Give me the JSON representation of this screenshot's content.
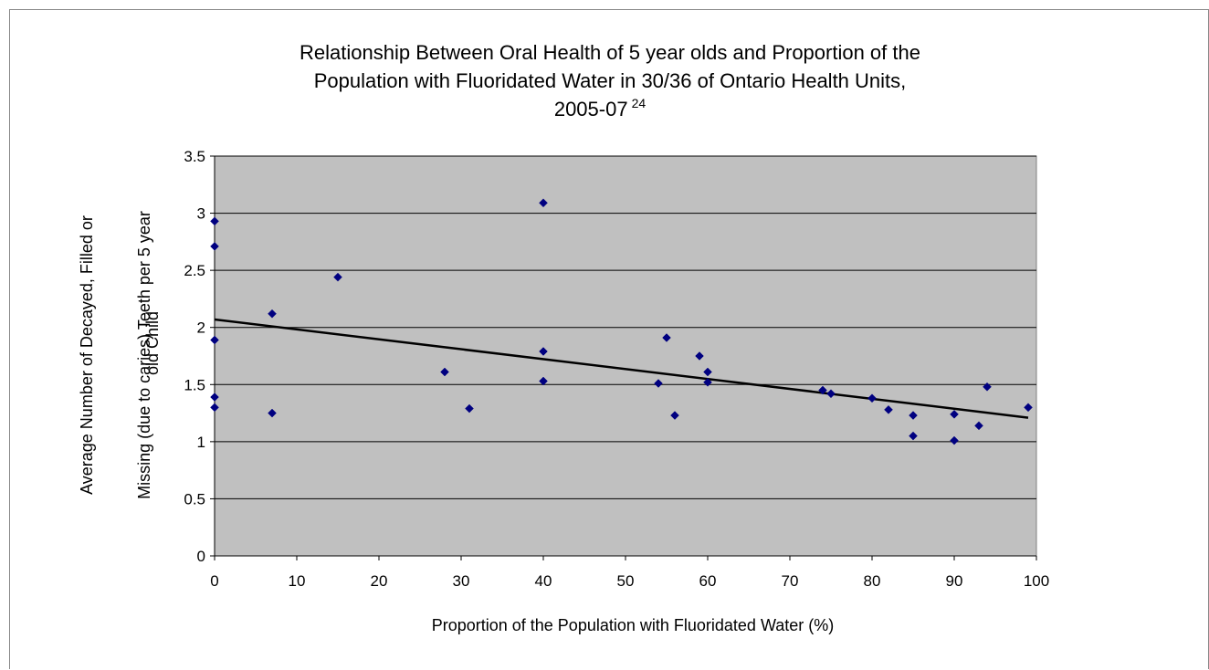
{
  "chart_data": {
    "type": "scatter",
    "title_lines": [
      "Relationship Between Oral Health of 5 year olds and Proportion of the",
      "Population with Fluoridated Water in 30/36 of Ontario Health Units,",
      "2005-07"
    ],
    "title_superscript": "24",
    "xlabel": "Proportion of the Population with Fluoridated Water (%)",
    "ylabel_lines": [
      "Average Number of Decayed, Filled or",
      "Missing (due to caries) Teeth per 5 year",
      "old Child"
    ],
    "xlim": [
      0,
      100
    ],
    "ylim": [
      0,
      3.5
    ],
    "x_ticks": [
      "0",
      "10",
      "20",
      "30",
      "40",
      "50",
      "60",
      "70",
      "80",
      "90",
      "100"
    ],
    "y_ticks": [
      "0",
      "0.5",
      "1",
      "1.5",
      "2",
      "2.5",
      "3",
      "3.5"
    ],
    "grid": "horizontal",
    "legend": "none",
    "plot_area_color": "#c0c0c0",
    "marker_color": "#000080",
    "points": [
      [
        0,
        2.93
      ],
      [
        0,
        2.71
      ],
      [
        0,
        1.89
      ],
      [
        0,
        1.39
      ],
      [
        0,
        1.3
      ],
      [
        7,
        2.12
      ],
      [
        7,
        1.25
      ],
      [
        15,
        2.44
      ],
      [
        28,
        1.61
      ],
      [
        31,
        1.29
      ],
      [
        40,
        3.09
      ],
      [
        40,
        1.79
      ],
      [
        40,
        1.53
      ],
      [
        54,
        1.51
      ],
      [
        55,
        1.91
      ],
      [
        56,
        1.23
      ],
      [
        59,
        1.75
      ],
      [
        60,
        1.61
      ],
      [
        60,
        1.52
      ],
      [
        74,
        1.45
      ],
      [
        75,
        1.42
      ],
      [
        80,
        1.38
      ],
      [
        82,
        1.28
      ],
      [
        85,
        1.23
      ],
      [
        85,
        1.05
      ],
      [
        90,
        1.24
      ],
      [
        90,
        1.01
      ],
      [
        93,
        1.14
      ],
      [
        94,
        1.48
      ],
      [
        99,
        1.3
      ]
    ],
    "trendline": {
      "type": "linear",
      "from": [
        0,
        2.07
      ],
      "to": [
        99,
        1.21
      ]
    }
  }
}
